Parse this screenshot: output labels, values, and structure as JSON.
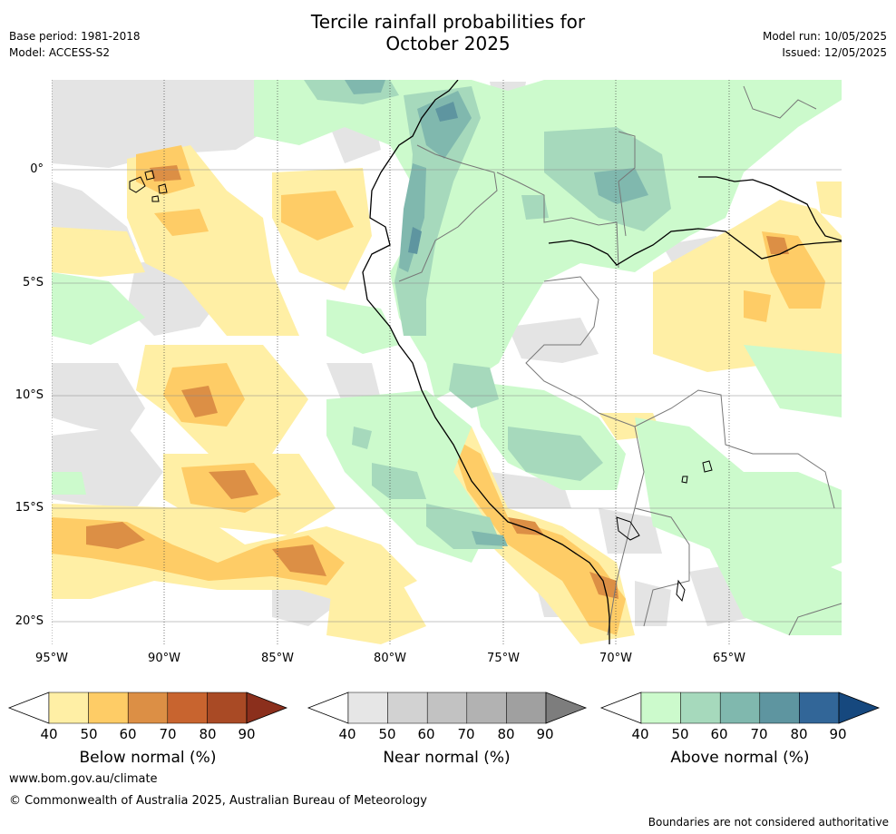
{
  "title_line1": "Tercile rainfall probabilities for",
  "title_line2": "October 2025",
  "base_period": "Base period: 1981-2018",
  "model": "Model: ACCESS-S2",
  "model_run": "Model run: 10/05/2025",
  "issued": "Issued: 12/05/2025",
  "map": {
    "lat_ticks": [
      "0°",
      "5°S",
      "10°S",
      "15°S",
      "20°S"
    ],
    "lon_ticks": [
      "95°W",
      "90°W",
      "85°W",
      "80°W",
      "75°W",
      "70°W",
      "65°W"
    ],
    "lat_values": [
      0,
      -5,
      -10,
      -15,
      -20
    ],
    "lon_values": [
      -95,
      -90,
      -85,
      -80,
      -75,
      -70,
      -65
    ],
    "lat_range": [
      -21,
      4
    ],
    "lon_range": [
      -95,
      -60
    ]
  },
  "colorbars": [
    {
      "label": "Below normal (%)",
      "ticks": [
        "40",
        "50",
        "60",
        "70",
        "80",
        "90"
      ],
      "colors": [
        "#ffefa5",
        "#fecc66",
        "#dc8f45",
        "#c8642f",
        "#a94a25",
        "#8b2f1c"
      ]
    },
    {
      "label": "Near normal (%)",
      "ticks": [
        "40",
        "50",
        "60",
        "70",
        "80",
        "90"
      ],
      "colors": [
        "#e6e6e6",
        "#d2d2d2",
        "#c2c2c2",
        "#b2b2b2",
        "#a0a0a0",
        "#7d7d7d"
      ]
    },
    {
      "label": "Above normal (%)",
      "ticks": [
        "40",
        "50",
        "60",
        "70",
        "80",
        "90"
      ],
      "colors": [
        "#ccfacc",
        "#a6d9bc",
        "#80b8ae",
        "#5e95a0",
        "#326698",
        "#16487e"
      ]
    }
  ],
  "footer_url": "www.bom.gov.au/climate",
  "footer_copyright": "© Commonwealth of Australia 2025, Australian Bureau of Meteorology",
  "footer_note": "Boundaries are not considered authoritative"
}
